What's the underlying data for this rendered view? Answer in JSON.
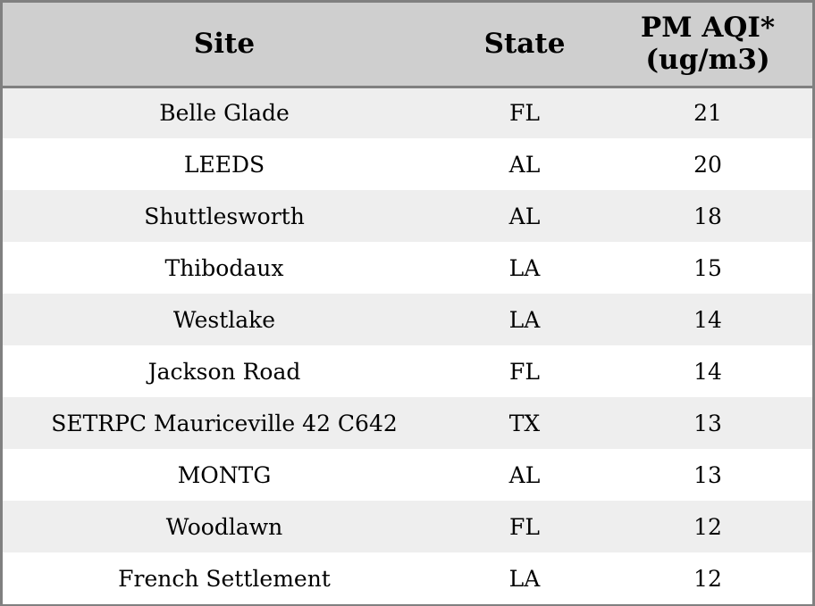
{
  "table": {
    "headers": {
      "site": "Site",
      "state": "State",
      "pm_line1": "PM AQI*",
      "pm_line2": "(ug/m3)"
    },
    "rows": [
      {
        "site": "Belle Glade",
        "state": "FL",
        "pm": "21"
      },
      {
        "site": "LEEDS",
        "state": "AL",
        "pm": "20"
      },
      {
        "site": "Shuttlesworth",
        "state": "AL",
        "pm": "18"
      },
      {
        "site": "Thibodaux",
        "state": "LA",
        "pm": "15"
      },
      {
        "site": "Westlake",
        "state": "LA",
        "pm": "14"
      },
      {
        "site": "Jackson Road",
        "state": "FL",
        "pm": "14"
      },
      {
        "site": "SETRPC Mauriceville 42 C642",
        "state": "TX",
        "pm": "13"
      },
      {
        "site": "MONTG",
        "state": "AL",
        "pm": "13"
      },
      {
        "site": "Woodlawn",
        "state": "FL",
        "pm": "12"
      },
      {
        "site": "French Settlement",
        "state": "LA",
        "pm": "12"
      }
    ]
  }
}
